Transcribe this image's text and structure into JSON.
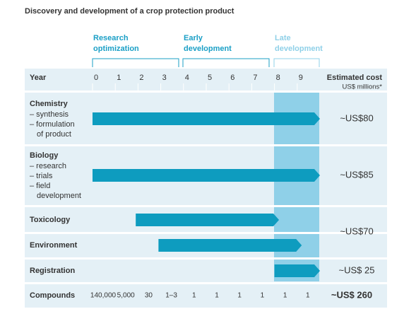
{
  "title": "Discovery and development of a crop protection product",
  "phases": [
    {
      "lines": [
        "Research",
        "optimization"
      ]
    },
    {
      "lines": [
        "Early",
        "development"
      ]
    },
    {
      "lines": [
        "Late",
        "development"
      ]
    }
  ],
  "year_header": "Year",
  "years": [
    0,
    1,
    2,
    3,
    4,
    5,
    6,
    7,
    8,
    9
  ],
  "cost_header": [
    "Estimated cost",
    "US$ millions*"
  ],
  "rows": [
    {
      "label": "Chemistry",
      "items": [
        "– synthesis",
        "– formulation",
        "of product"
      ],
      "start": 0,
      "end": 10
    },
    {
      "label": "Biology",
      "items": [
        "– research",
        "– trials",
        "– field",
        "development"
      ],
      "start": 0,
      "end": 10
    },
    {
      "label": "Toxicology",
      "items": [],
      "start": 1.9,
      "end": 8.2
    },
    {
      "label": "Environment",
      "items": [],
      "start": 2.9,
      "end": 9.2
    },
    {
      "label": "Registration",
      "items": [],
      "start": 8,
      "end": 10
    }
  ],
  "costs": [
    "~US$80",
    "~US$85",
    "~US$70",
    "~US$ 25"
  ],
  "compounds": {
    "label": "Compounds",
    "values": [
      "140,000",
      "5,000",
      "30",
      "1–3",
      "1",
      "1",
      "1",
      "1",
      "1",
      "1"
    ],
    "total": "~US$ 260"
  }
}
